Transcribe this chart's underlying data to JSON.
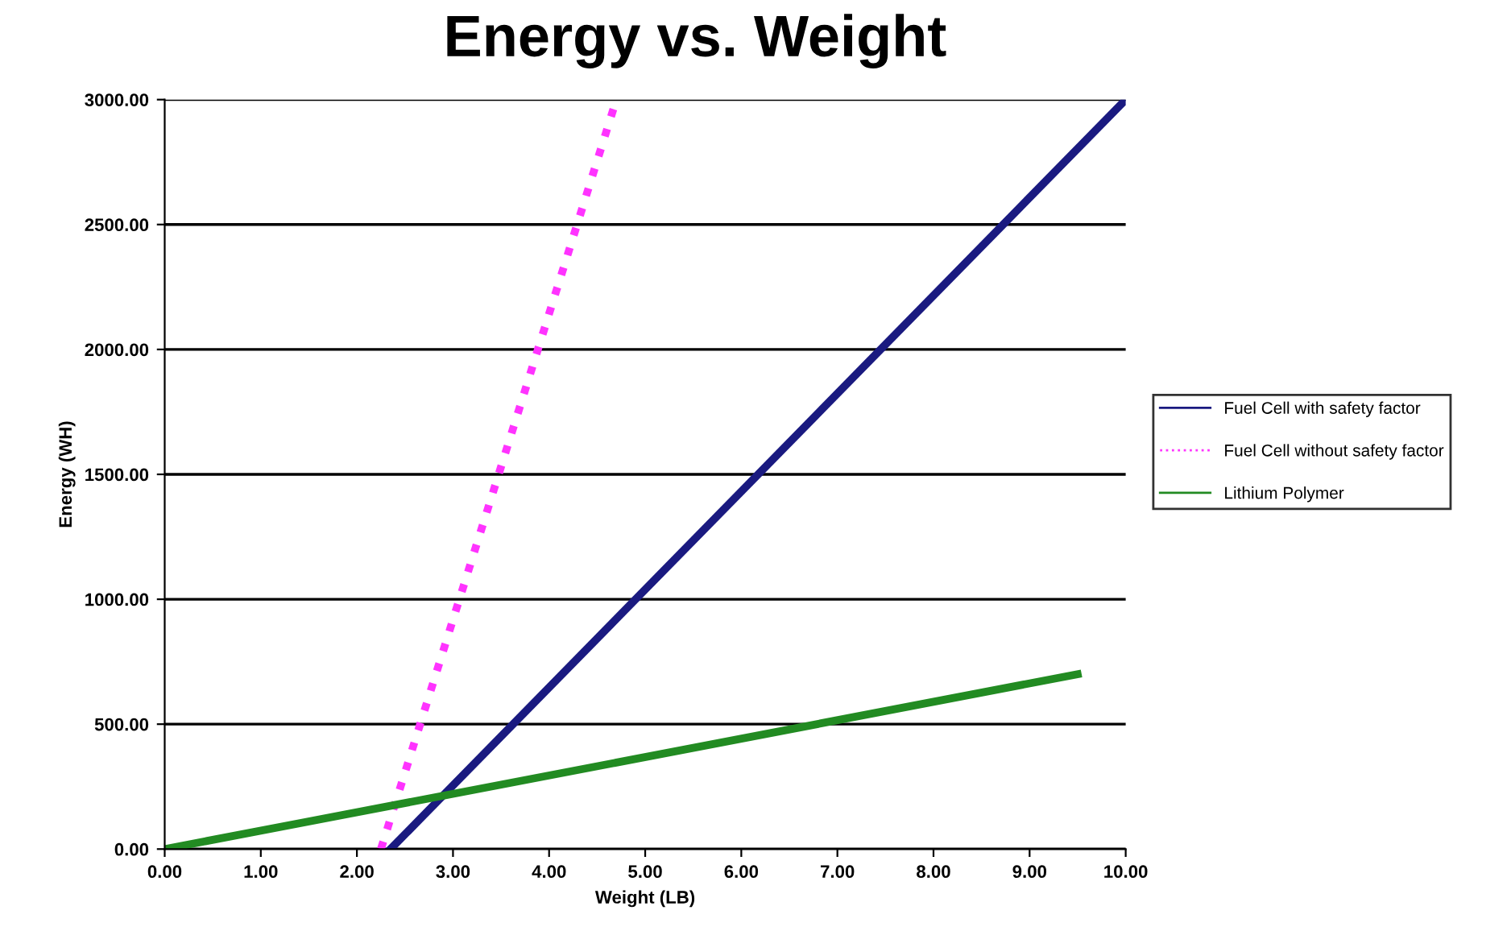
{
  "chart_data": {
    "type": "line",
    "title": "Energy vs. Weight",
    "xlabel": "Weight (LB)",
    "ylabel": "Energy (WH)",
    "series": [
      {
        "name": "Fuel Cell with safety factor",
        "color": "#1a1a80",
        "x": [
          2.35,
          10.0
        ],
        "values": [
          0,
          3000
        ],
        "line_style": "solid"
      },
      {
        "name": "Fuel Cell without safety factor",
        "color": "#ff33ff",
        "x": [
          2.25,
          4.7
        ],
        "values": [
          0,
          3000
        ],
        "line_style": "dotted"
      },
      {
        "name": "Lithium Polymer",
        "color": "#228b22",
        "x": [
          0,
          9.5
        ],
        "values": [
          0,
          700
        ],
        "line_style": "solid"
      }
    ],
    "xlim": [
      0,
      10
    ],
    "ylim": [
      0,
      3000
    ],
    "xticks": [
      {
        "value": 0,
        "label": "0.00"
      },
      {
        "value": 1,
        "label": "1.00"
      },
      {
        "value": 2,
        "label": "2.00"
      },
      {
        "value": 3,
        "label": "3.00"
      },
      {
        "value": 4,
        "label": "4.00"
      },
      {
        "value": 5,
        "label": "5.00"
      },
      {
        "value": 6,
        "label": "6.00"
      },
      {
        "value": 7,
        "label": "7.00"
      },
      {
        "value": 8,
        "label": "8.00"
      },
      {
        "value": 9,
        "label": "9.00"
      },
      {
        "value": 10,
        "label": "10.00"
      }
    ],
    "yticks": [
      {
        "value": 0,
        "label": "0.00"
      },
      {
        "value": 500,
        "label": "500.00"
      },
      {
        "value": 1000,
        "label": "1000.00"
      },
      {
        "value": 1500,
        "label": "1500.00"
      },
      {
        "value": 2000,
        "label": "2000.00"
      },
      {
        "value": 2500,
        "label": "2500.00"
      },
      {
        "value": 3000,
        "label": "3000.00"
      }
    ],
    "grid": "y",
    "legend": "right"
  }
}
